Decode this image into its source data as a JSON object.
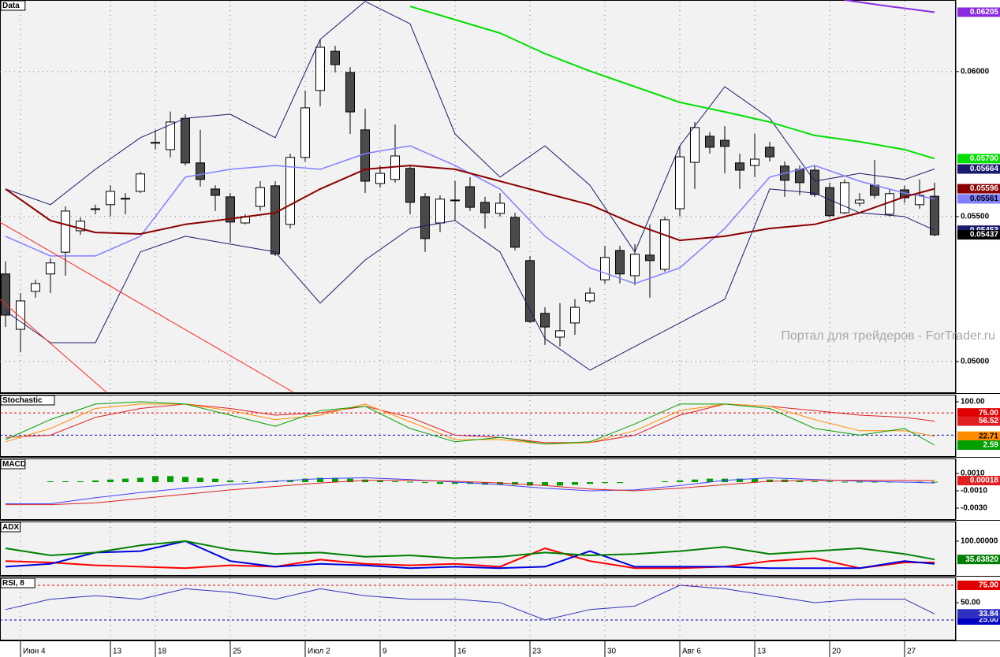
{
  "chart_data": [
    {
      "type": "candlestick",
      "title": "Data",
      "annotation": "Портал для трейдеров - ForTrader.ru",
      "categories": [
        null,
        "Июн 4",
        null,
        null,
        null,
        null,
        null,
        "13",
        null,
        null,
        "18",
        null,
        null,
        null,
        null,
        "25",
        null,
        null,
        null,
        null,
        "Июл 2",
        null,
        null,
        null,
        null,
        "9",
        null,
        null,
        null,
        null,
        "16",
        null,
        null,
        null,
        null,
        "23",
        null,
        null,
        null,
        null,
        "30",
        null,
        null,
        null,
        null,
        "Авг 6",
        null,
        null,
        null,
        null,
        "13",
        null,
        null,
        null,
        null,
        "20",
        null,
        null,
        null,
        null,
        "27",
        null,
        null
      ],
      "open": [
        0.05302,
        0.05111,
        0.05242,
        0.05302,
        0.05377,
        0.05451,
        0.05524,
        0.05541,
        0.0556,
        0.05587,
        0.05753,
        0.05731,
        0.05839,
        0.05685,
        0.05595,
        0.05568,
        0.05478,
        0.05535,
        0.05606,
        0.05473,
        0.05704,
        0.05935,
        0.0607,
        0.05997,
        0.05799,
        0.05614,
        0.05628,
        0.05666,
        0.05568,
        0.05478,
        0.05555,
        0.05603,
        0.05549,
        0.05511,
        0.05497,
        0.05348,
        0.05166,
        0.05084,
        0.05133,
        0.05209,
        0.05282,
        0.05383,
        0.05296,
        0.05367,
        0.05318,
        0.05527,
        0.05687,
        0.05777,
        0.05763,
        0.05685,
        0.05676,
        0.05739,
        0.05674,
        0.05663,
        0.0566,
        0.056,
        0.05513,
        0.05546,
        0.05608,
        0.05508,
        0.05592,
        0.05541,
        0.0557
      ],
      "high": [
        0.05345,
        0.05236,
        0.05282,
        0.05356,
        0.05535,
        0.05497,
        0.05541,
        0.05608,
        0.05581,
        0.05655,
        0.05799,
        0.05862,
        0.05853,
        0.05799,
        0.05608,
        0.05581,
        0.05508,
        0.05622,
        0.05622,
        0.05717,
        0.05935,
        0.06111,
        0.06089,
        0.06016,
        0.05872,
        0.05676,
        0.05818,
        0.05676,
        0.05581,
        0.05573,
        0.05622,
        0.05636,
        0.05568,
        0.05581,
        0.05513,
        0.05364,
        0.05187,
        0.05201,
        0.05215,
        0.05255,
        0.05399,
        0.05399,
        0.05405,
        0.05473,
        0.055,
        0.05744,
        0.05826,
        0.05791,
        0.05812,
        0.05717,
        0.05785,
        0.05758,
        0.0569,
        0.05676,
        0.05676,
        0.05617,
        0.05628,
        0.05581,
        0.05695,
        0.05595,
        0.05606,
        0.05628,
        0.05617
      ],
      "low": [
        0.05119,
        0.05032,
        0.0522,
        0.05236,
        0.05296,
        0.05437,
        0.05508,
        0.055,
        0.05508,
        0.05581,
        0.05731,
        0.05704,
        0.05676,
        0.05603,
        0.05519,
        0.0541,
        0.05473,
        0.05519,
        0.05364,
        0.05459,
        0.0569,
        0.0588,
        0.05997,
        0.05785,
        0.05581,
        0.056,
        0.05617,
        0.05508,
        0.05378,
        0.05446,
        0.05486,
        0.05519,
        0.05459,
        0.055,
        0.05383,
        0.05133,
        0.05057,
        0.05052,
        0.05092,
        0.05201,
        0.05269,
        0.05269,
        0.05263,
        0.0522,
        0.0531,
        0.055,
        0.05595,
        0.05717,
        0.05649,
        0.05595,
        0.05636,
        0.0569,
        0.05568,
        0.05573,
        0.05568,
        0.05497,
        0.05508,
        0.05535,
        0.05562,
        0.055,
        0.05546,
        0.05527,
        0.05432
      ],
      "close": [
        0.0516,
        0.05209,
        0.05269,
        0.0534,
        0.05519,
        0.05484,
        0.05527,
        0.05587,
        0.05563,
        0.05647,
        0.05756,
        0.05826,
        0.05685,
        0.05628,
        0.05573,
        0.05481,
        0.055,
        0.056,
        0.05371,
        0.05704,
        0.05875,
        0.06084,
        0.06024,
        0.05861,
        0.05622,
        0.05649,
        0.05709,
        0.05549,
        0.05424,
        0.0556,
        0.05557,
        0.05532,
        0.05513,
        0.05546,
        0.05394,
        0.05138,
        0.05119,
        0.05106,
        0.05187,
        0.05236,
        0.05359,
        0.05302,
        0.0537,
        0.05348,
        0.05489,
        0.05706,
        0.05807,
        0.05739,
        0.05742,
        0.0566,
        0.05698,
        0.05706,
        0.05625,
        0.05617,
        0.05576,
        0.05503,
        0.05617,
        0.05557,
        0.05573,
        0.05579,
        0.05565,
        0.05573,
        0.05437
      ],
      "close_label": "0.05437",
      "up_color": "#ffffff",
      "down_color": "#4a4a4a",
      "ylim": [
        0.04891,
        0.06247
      ],
      "yticks": [
        {
          "value": 0.06,
          "label": "0.06000"
        },
        {
          "value": 0.055,
          "label": "0.05500"
        },
        {
          "value": 0.05,
          "label": "0.05000"
        }
      ],
      "grid": true,
      "x": [
        0,
        3,
        6,
        9,
        12,
        15,
        18,
        21,
        24,
        27,
        30,
        33,
        36,
        39,
        42,
        45,
        48,
        51,
        54,
        57,
        60,
        62
      ],
      "lines": [
        {
          "color": "#1a1a6e",
          "width": 1,
          "last_label": "0.05664",
          "values": [
            0.05595,
            0.05541,
            0.05663,
            0.05772,
            0.05839,
            0.05853,
            0.05772,
            0.06111,
            0.06242,
            0.06165,
            0.05785,
            0.05636,
            0.05744,
            0.05608,
            0.05378,
            0.05744,
            0.05948,
            0.05839,
            0.05622,
            0.05649,
            0.05628,
            0.05664
          ]
        },
        {
          "color": "#8080ff",
          "width": 1.5,
          "last_label": "0.05561",
          "values": [
            0.05432,
            0.05364,
            0.05364,
            0.05432,
            0.05636,
            0.05663,
            0.05676,
            0.05663,
            0.05717,
            0.05744,
            0.05676,
            0.05595,
            0.05432,
            0.05323,
            0.05269,
            0.05323,
            0.05459,
            0.05636,
            0.05676,
            0.05622,
            0.05581,
            0.05561
          ]
        },
        {
          "color": "#1a1a6e",
          "width": 1,
          "last_label": "0.05453",
          "values": [
            0.05174,
            0.05065,
            0.05065,
            0.05378,
            0.05432,
            0.05405,
            0.05378,
            0.05201,
            0.0535,
            0.05459,
            0.05486,
            0.05378,
            0.05079,
            0.0497,
            0.05052,
            0.05133,
            0.05215,
            0.05595,
            0.05581,
            0.05513,
            0.055,
            0.05453
          ]
        },
        {
          "color": "#8b0000",
          "width": 2,
          "last_label": "0.05596",
          "values": [
            0.05595,
            0.05486,
            0.05445,
            0.0544,
            0.05473,
            0.05492,
            0.05513,
            0.05595,
            0.05663,
            0.05676,
            0.05663,
            0.05622,
            0.05581,
            0.05541,
            0.05473,
            0.05418,
            0.05432,
            0.05459,
            0.05473,
            0.05513,
            0.05568,
            0.05596
          ]
        },
        {
          "color": "#00e000",
          "width": 2,
          "last_label": "0.05700",
          "x": [
            27,
            30,
            33,
            36,
            39,
            42,
            45,
            48,
            51,
            54,
            57,
            60,
            62
          ],
          "values": [
            0.06225,
            0.06179,
            0.06133,
            0.06062,
            0.06002,
            0.05948,
            0.05894,
            0.05861,
            0.05826,
            0.0578,
            0.05758,
            0.05731,
            0.057
          ]
        },
        {
          "color": "#8a2be2",
          "width": 2,
          "last_label": "0.06205",
          "x": [
            56,
            59,
            62
          ],
          "values": [
            0.06247,
            0.06225,
            0.06205
          ]
        }
      ]
    },
    {
      "type": "line",
      "title": "Stochastic",
      "ylim": [
        -24,
        116
      ],
      "yticks": [
        {
          "value": 100,
          "label": "100.00"
        }
      ],
      "levels": [
        {
          "value": 75,
          "label": "75.00",
          "color": "#e00000"
        },
        {
          "value": 25,
          "color": "#0000c0"
        }
      ],
      "x": [
        0,
        3,
        6,
        9,
        12,
        15,
        18,
        21,
        24,
        27,
        30,
        33,
        36,
        39,
        42,
        45,
        48,
        51,
        54,
        57,
        60,
        62
      ],
      "lines": [
        {
          "color": "#e02020",
          "width": 1,
          "last_label": "56.52",
          "values": [
            20,
            25,
            65,
            85,
            95,
            85,
            70,
            75,
            90,
            65,
            25,
            20,
            8,
            8,
            25,
            70,
            95,
            90,
            80,
            70,
            65,
            56.52
          ]
        },
        {
          "color": "#ff8c00",
          "width": 1,
          "last_label": "22.71",
          "values": [
            10,
            40,
            85,
            95,
            95,
            80,
            60,
            70,
            95,
            55,
            15,
            15,
            5,
            8,
            35,
            80,
            95,
            90,
            60,
            35,
            35,
            22.71
          ]
        },
        {
          "color": "#00a000",
          "width": 1,
          "last_label": "2.59",
          "values": [
            15,
            60,
            95,
            100,
            95,
            70,
            45,
            80,
            90,
            40,
            10,
            20,
            5,
            10,
            50,
            95,
            95,
            85,
            40,
            25,
            40,
            2.59
          ]
        }
      ]
    },
    {
      "type": "line",
      "title": "MACD",
      "ylim": [
        -0.00436,
        0.00273
      ],
      "yticks": [
        {
          "value": 0.001,
          "label": "0.0010"
        },
        {
          "value": -0.001,
          "label": "-0.0010"
        },
        {
          "value": -0.003,
          "label": "-0.0030"
        }
      ],
      "histogram_color": "#00a000",
      "histogram": [
        null,
        null,
        null,
        0.0001,
        0.0001,
        0.0001,
        0.0002,
        0.0003,
        0.0004,
        0.0005,
        0.0007,
        0.0007,
        0.0006,
        0.0005,
        0.0004,
        0.0002,
        0.0001,
        0.0001,
        0.0001,
        0.0002,
        0.0004,
        0.0005,
        0.0005,
        0.0004,
        0.0003,
        0.0002,
        0.0001,
        5e-05,
        -0.0001,
        -0.0002,
        -0.0002,
        -0.0002,
        -0.0003,
        -0.0003,
        -0.0003,
        -0.0004,
        -0.0004,
        -0.0004,
        -0.0003,
        -0.0002,
        -0.0001,
        -0.0001,
        null,
        null,
        0.0001,
        0.0002,
        0.0003,
        0.0004,
        0.0004,
        0.0004,
        0.0004,
        0.0003,
        0.0003,
        0.0002,
        0.0001,
        0.0001,
        5e-05,
        5e-05,
        5e-05,
        5e-05,
        5e-05,
        5e-05,
        5e-05
      ],
      "x": [
        0,
        3,
        6,
        9,
        12,
        15,
        18,
        21,
        24,
        27,
        30,
        33,
        36,
        39,
        42,
        45,
        48,
        51,
        54,
        57,
        60,
        62
      ],
      "lines": [
        {
          "color": "#4040ff",
          "width": 1,
          "values": [
            -0.0025,
            -0.0025,
            -0.0018,
            -0.0012,
            -0.0007,
            -0.0003,
            0.0001,
            0.0004,
            0.0005,
            0.0003,
            0.0,
            -0.0003,
            -0.0007,
            -0.001,
            -0.0009,
            -0.0004,
            0.0002,
            0.0005,
            0.0003,
            0.0001,
            0.0,
            -0.0001
          ]
        },
        {
          "color": "#e02020",
          "width": 1,
          "last_label": "0.00018",
          "values": [
            -0.0026,
            -0.0026,
            -0.0024,
            -0.0019,
            -0.0014,
            -0.0009,
            -0.0005,
            -0.0001,
            0.0002,
            0.0002,
            0.0001,
            -0.0001,
            -0.0004,
            -0.0008,
            -0.001,
            -0.0007,
            -0.0003,
            0.0001,
            0.0002,
            0.0002,
            0.0002,
            0.00018
          ]
        }
      ]
    },
    {
      "type": "line",
      "title": "ADX",
      "ylim": [
        -22,
        169
      ],
      "yticks": [
        {
          "value": 100,
          "label": "100.00000"
        }
      ],
      "x": [
        0,
        3,
        6,
        9,
        12,
        15,
        18,
        21,
        24,
        27,
        30,
        33,
        36,
        39,
        42,
        45,
        48,
        51,
        54,
        57,
        60,
        62
      ],
      "lines": [
        {
          "color": "#ff0000",
          "width": 2,
          "values": [
            30,
            25,
            15,
            10,
            5,
            15,
            10,
            35,
            20,
            15,
            20,
            10,
            75,
            30,
            5,
            5,
            10,
            30,
            40,
            5,
            25,
            25
          ]
        },
        {
          "color": "#0000e0",
          "width": 2,
          "values": [
            10,
            20,
            60,
            65,
            100,
            30,
            10,
            20,
            15,
            5,
            10,
            5,
            10,
            65,
            10,
            10,
            10,
            5,
            5,
            5,
            30,
            20
          ]
        },
        {
          "color": "#008000",
          "width": 2,
          "last_label": "35.63820",
          "values": [
            75,
            50,
            60,
            85,
            100,
            70,
            55,
            60,
            45,
            50,
            40,
            45,
            60,
            50,
            55,
            65,
            80,
            55,
            65,
            75,
            55,
            35.6382
          ]
        }
      ]
    },
    {
      "type": "line",
      "title": "RSI, 8",
      "ylim": [
        -4.5,
        86.4
      ],
      "yticks": [
        {
          "value": 50,
          "label": "50.00"
        }
      ],
      "levels": [
        {
          "value": 75,
          "label": "75.00",
          "color": "#e00000"
        },
        {
          "value": 25,
          "label": "25.00",
          "color": "#0000c0"
        }
      ],
      "x": [
        0,
        3,
        6,
        9,
        12,
        15,
        18,
        21,
        24,
        27,
        30,
        33,
        36,
        39,
        42,
        45,
        48,
        51,
        54,
        57,
        60,
        62
      ],
      "lines": [
        {
          "color": "#3030c0",
          "width": 1,
          "last_label": "33.84",
          "values": [
            40,
            55,
            60,
            55,
            70,
            65,
            55,
            70,
            60,
            55,
            55,
            50,
            25,
            40,
            45,
            75,
            70,
            60,
            50,
            55,
            55,
            33.84
          ]
        }
      ]
    }
  ]
}
